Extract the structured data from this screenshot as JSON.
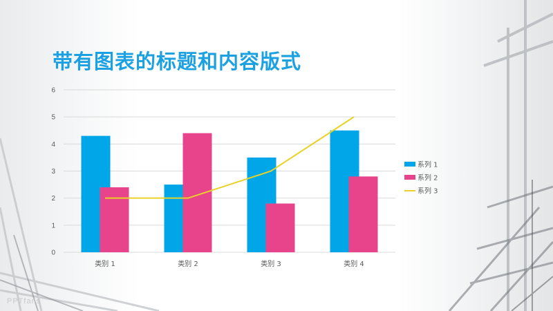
{
  "slide": {
    "title": "带有图表的标题和内容版式",
    "watermark": "PPTfans"
  },
  "colors": {
    "title": "#1ba1e2",
    "series1": "#00a6e8",
    "series2": "#e8448b",
    "series3": "#e8d226",
    "grid": "#d9d9d9"
  },
  "chart_data": {
    "type": "bar",
    "title": "",
    "xlabel": "",
    "ylabel": "",
    "categories": [
      "类别 1",
      "类别 2",
      "类别 3",
      "类别 4"
    ],
    "ylim": [
      0,
      6
    ],
    "yticks": [
      "0",
      "1",
      "2",
      "3",
      "4",
      "5",
      "6"
    ],
    "grid": true,
    "legend_position": "right",
    "series": [
      {
        "name": "系列 1",
        "kind": "bar",
        "color": "#00a6e8",
        "values": [
          4.3,
          2.5,
          3.5,
          4.5
        ]
      },
      {
        "name": "系列 2",
        "kind": "bar",
        "color": "#e8448b",
        "values": [
          2.4,
          4.4,
          1.8,
          2.8
        ]
      },
      {
        "name": "系列 3",
        "kind": "line",
        "color": "#e8d226",
        "values": [
          2,
          2,
          3,
          5
        ]
      }
    ]
  }
}
